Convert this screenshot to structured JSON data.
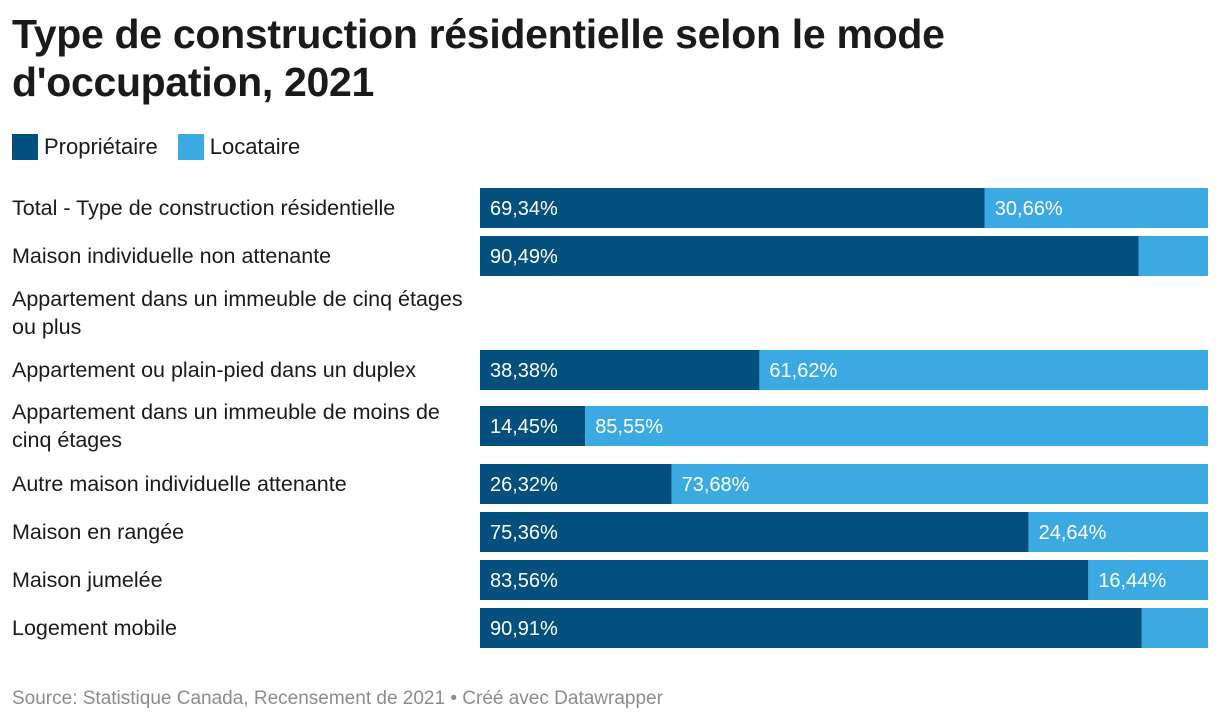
{
  "title": "Type de construction résidentielle selon le mode d'occupation, 2021",
  "legend": [
    {
      "label": "Propriétaire",
      "color": "#03507f"
    },
    {
      "label": "Locataire",
      "color": "#3ba9e2"
    }
  ],
  "footer": {
    "source": "Source: Statistique Canada, Recensement de 2021",
    "separator": "•",
    "credit": "Créé avec Datawrapper"
  },
  "chart_data": {
    "type": "bar",
    "orientation": "horizontal",
    "stacked": true,
    "unit": "%",
    "xlim": [
      0,
      100
    ],
    "categories": [
      "Total - Type de construction résidentielle",
      "Maison individuelle non attenante",
      "Appartement dans un immeuble de cinq étages ou plus",
      "Appartement ou plain-pied dans un duplex",
      "Appartement dans un immeuble de moins de cinq étages",
      "Autre maison individuelle attenante",
      "Maison en rangée",
      "Maison jumelée",
      "Logement mobile"
    ],
    "series": [
      {
        "name": "Propriétaire",
        "color": "#03507f",
        "values": [
          69.34,
          90.49,
          null,
          38.38,
          14.45,
          26.32,
          75.36,
          83.56,
          90.91
        ],
        "labels": [
          "69,34%",
          "90,49%",
          "",
          "38,38%",
          "14,45%",
          "26,32%",
          "75,36%",
          "83,56%",
          "90,91%"
        ]
      },
      {
        "name": "Locataire",
        "color": "#3ba9e2",
        "values": [
          30.66,
          9.51,
          null,
          61.62,
          85.55,
          73.68,
          24.64,
          16.44,
          9.09
        ],
        "labels": [
          "30,66%",
          "",
          "",
          "61,62%",
          "85,55%",
          "73,68%",
          "24,64%",
          "16,44%",
          ""
        ]
      }
    ]
  }
}
